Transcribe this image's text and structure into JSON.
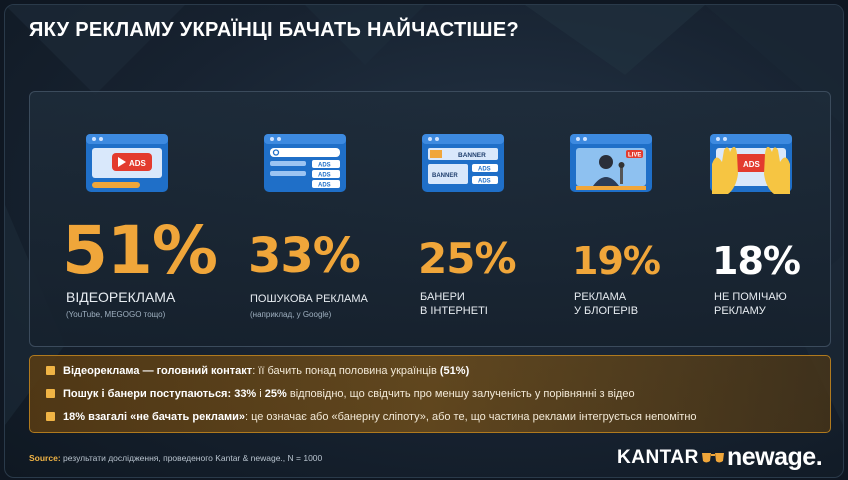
{
  "title": "ЯКУ РЕКЛАМУ УКРАЇНЦІ БАЧАТЬ НАЙЧАСТІШЕ?",
  "chart_data": {
    "type": "bar",
    "categories": [
      "ВІДЕОРЕКЛАМА",
      "ПОШУКОВА РЕКЛАМА",
      "БАНЕРИ В ІНТЕРНЕТІ",
      "РЕКЛАМА У БЛОГЕРІВ",
      "НЕ ПОМІЧАЮ РЕКЛАМУ"
    ],
    "values": [
      51,
      33,
      25,
      19,
      18
    ],
    "value_labels": [
      "51%",
      "33%",
      "25%",
      "19%",
      "18%"
    ],
    "title": "ЯКУ РЕКЛАМУ УКРАЇНЦІ БАЧАТЬ НАЙЧАСТІШЕ?",
    "xlabel": "",
    "ylabel": ""
  },
  "stats": [
    {
      "pct": "51%",
      "label1": "ВІДЕОРЕКЛАМА",
      "label2": "",
      "note": "(YouTube, MEGOGO тощо)",
      "icon": "video-ads-icon",
      "color": "#f0a63a"
    },
    {
      "pct": "33%",
      "label1": "ПОШУКОВА РЕКЛАМА",
      "label2": "",
      "note": "(наприклад, у Google)",
      "icon": "search-ads-icon",
      "color": "#f0a63a"
    },
    {
      "pct": "25%",
      "label1": "БАНЕРИ",
      "label2": "В ІНТЕРНЕТІ",
      "note": "",
      "icon": "banner-ads-icon",
      "color": "#f0a63a"
    },
    {
      "pct": "19%",
      "label1": "РЕКЛАМА",
      "label2": "У БЛОГЕРІВ",
      "note": "",
      "icon": "blogger-live-icon",
      "color": "#f0a63a"
    },
    {
      "pct": "18%",
      "label1": "НЕ ПОМІЧАЮ",
      "label2": "РЕКЛАМУ",
      "note": "",
      "icon": "hands-covering-ads-icon",
      "color": "#ffffff"
    }
  ],
  "icon_texts": {
    "ads": "ADS",
    "banner": "BANNER",
    "live": "LIVE"
  },
  "bullets": [
    {
      "bold": "Відеореклама — головний контакт",
      "text": ": її бачить понад половина українців ",
      "bold2": "(51%)",
      "text2": ""
    },
    {
      "bold": "Пошук і банери поступаються: 33%",
      "text": " і ",
      "bold2": "25%",
      "text2": " відповідно, що свідчить про меншу залученість у порівнянні з відео"
    },
    {
      "bold": "18% взагалі «не бачать реклами»",
      "text": ": це означає або «банерну сліпоту», або те, що частина реклами інтегрується непомітно",
      "bold2": "",
      "text2": ""
    }
  ],
  "source": {
    "label": "Source:",
    "text": " результати дослідження, проведеного Kantar & newage., N = 1000"
  },
  "logo": {
    "kantar": "KANTAR",
    "newage": "newage."
  },
  "colors": {
    "accent": "#f0a63a",
    "background": "#172230",
    "bullet_box": "#7a5418"
  }
}
